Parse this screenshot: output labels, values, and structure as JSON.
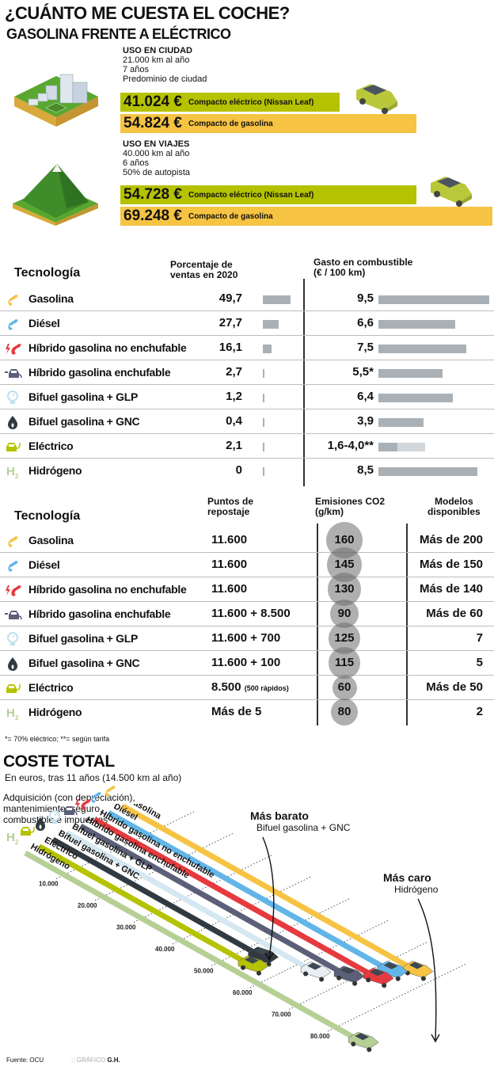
{
  "header": {
    "title": "¿CUÁNTO ME CUESTA EL COCHE?",
    "subtitle": "GASOLINA FRENTE A ELÉCTRICO"
  },
  "comparisons": [
    {
      "heading": "USO EN CIUDAD",
      "details": [
        "21.000 km al año",
        "7 años",
        "Predominio de ciudad"
      ],
      "illustration": "city-block-icon",
      "costs": [
        {
          "amount": "41.024 €",
          "label": "Compacto eléctrico (Nissan Leaf)",
          "color": "#b5c200"
        },
        {
          "amount": "54.824 €",
          "label": "Compacto de gasolina",
          "color": "#f6c343"
        }
      ]
    },
    {
      "heading": "USO EN VIAJES",
      "details": [
        "40.000 km al año",
        "6 años",
        "50% de autopista"
      ],
      "illustration": "mountain-icon",
      "costs": [
        {
          "amount": "54.728 €",
          "label": "Compacto eléctrico (Nissan Leaf)",
          "color": "#b5c200"
        },
        {
          "amount": "69.248 €",
          "label": "Compacto de gasolina",
          "color": "#f6c343"
        }
      ]
    }
  ],
  "table1": {
    "headers": {
      "tech": "Tecnología",
      "sales": [
        "Porcentaje de",
        "ventas en 2020"
      ],
      "fuel": [
        "Gasto en combustible",
        "(€ / 100 km)"
      ]
    },
    "rows": [
      {
        "tech": "Gasolina",
        "icon": "gasoline-pump-icon",
        "sales": "49,7",
        "sales_value": 49.7,
        "fuel": "9,5",
        "fuel_value": 9.5
      },
      {
        "tech": "Diésel",
        "icon": "diesel-pump-icon",
        "sales": "27,7",
        "sales_value": 27.7,
        "fuel": "6,6",
        "fuel_value": 6.6
      },
      {
        "tech": "Híbrido gasolina no enchufable",
        "icon": "hybrid-icon",
        "sales": "16,1",
        "sales_value": 16.1,
        "fuel": "7,5",
        "fuel_value": 7.5
      },
      {
        "tech": "Híbrido gasolina enchufable",
        "icon": "plugin-hybrid-icon",
        "sales": "2,7",
        "sales_value": 2.7,
        "fuel": "5,5*",
        "fuel_value": 5.5
      },
      {
        "tech": "Bifuel gasolina + GLP",
        "icon": "lpg-gauge-icon",
        "sales": "1,2",
        "sales_value": 1.2,
        "fuel": "6,4",
        "fuel_value": 6.4
      },
      {
        "tech": "Bifuel gasolina + GNC",
        "icon": "flame-icon",
        "sales": "0,4",
        "sales_value": 0.4,
        "fuel": "3,9",
        "fuel_value": 3.9
      },
      {
        "tech": "Eléctrico",
        "icon": "electric-car-icon",
        "sales": "2,1",
        "sales_value": 2.1,
        "fuel": "1,6-4,0**",
        "fuel_value": 1.6,
        "fuel_value_max": 4.0
      },
      {
        "tech": "Hidrógeno",
        "icon": "h2-icon",
        "sales": "0",
        "sales_value": 0,
        "fuel": "8,5",
        "fuel_value": 8.5
      }
    ]
  },
  "table2": {
    "headers": {
      "tech": "Tecnología",
      "points": [
        "Puntos de",
        "repostaje"
      ],
      "co2": [
        "Emisiones CO2",
        "(g/km)"
      ],
      "models": [
        "Modelos",
        "disponibles"
      ]
    },
    "rows": [
      {
        "tech": "Gasolina",
        "points": "11.600",
        "points_note": "",
        "co2": "160",
        "co2_value": 160,
        "models": "Más de 200"
      },
      {
        "tech": "Diésel",
        "points": "11.600",
        "points_note": "",
        "co2": "145",
        "co2_value": 145,
        "models": "Más de 150"
      },
      {
        "tech": "Híbrido gasolina no enchufable",
        "points": "11.600",
        "points_note": "",
        "co2": "130",
        "co2_value": 130,
        "models": "Más de 140"
      },
      {
        "tech": "Híbrido gasolina enchufable",
        "points": "11.600 + 8.500",
        "points_note": "",
        "co2": "90",
        "co2_value": 90,
        "models": "Más de 60"
      },
      {
        "tech": "Bifuel gasolina + GLP",
        "points": "11.600 + 700",
        "points_note": "",
        "co2": "125",
        "co2_value": 125,
        "models": "7"
      },
      {
        "tech": "Bifuel gasolina + GNC",
        "points": "11.600 + 100",
        "points_note": "",
        "co2": "115",
        "co2_value": 115,
        "models": "5"
      },
      {
        "tech": "Eléctrico",
        "points": "8.500",
        "points_note": "(500 rápidos)",
        "co2": "60",
        "co2_value": 60,
        "models": "Más de 50"
      },
      {
        "tech": "Hidrógeno",
        "points": "Más de 5",
        "points_note": "",
        "co2": "80",
        "co2_value": 80,
        "models": "2"
      }
    ],
    "footnote": "*= 70% eléctrico; **= según tarifa"
  },
  "chart_data": {
    "type": "line",
    "title": "COSTE TOTAL",
    "subtitle": "En euros, tras 11 años (14.500 km al año)",
    "description": "Adquisición (con depreciación), mantenimiento, seguro, combustible e impuestos",
    "axis_ticks": [
      "10.000",
      "20.000",
      "30.000",
      "40.000",
      "50.000",
      "60.000",
      "70.000",
      "80.000"
    ],
    "axis_range": [
      0,
      90000
    ],
    "series": [
      {
        "name": "Gasolina",
        "value": 76000,
        "color": "#f6c343"
      },
      {
        "name": "Diésel",
        "value": 73000,
        "color": "#62b6e7"
      },
      {
        "name": "Híbrido gasolina no enchufable",
        "value": 73000,
        "color": "#e63a3f"
      },
      {
        "name": "Híbrido gasolina enchufable",
        "value": 69000,
        "color": "#5c5f78"
      },
      {
        "name": "Bifuel gasolina + GLP",
        "value": 64000,
        "color": "#d5e8f1"
      },
      {
        "name": "Bifuel gasolina + GNC",
        "value": 54000,
        "color": "#323a41"
      },
      {
        "name": "Eléctrico",
        "value": 55000,
        "color": "#b5c200"
      },
      {
        "name": "Hidrógeno",
        "value": 87000,
        "color": "#b6cf95"
      }
    ],
    "annotations": [
      {
        "title": "Más barato",
        "text": "Bifuel gasolina + GNC"
      },
      {
        "title": "Más caro",
        "text": "Hidrógeno"
      }
    ]
  },
  "footer": {
    "source": "Fuente: OCU",
    "credit_prefix": ":: GRÁFICO",
    "credit_author": "G.H."
  }
}
